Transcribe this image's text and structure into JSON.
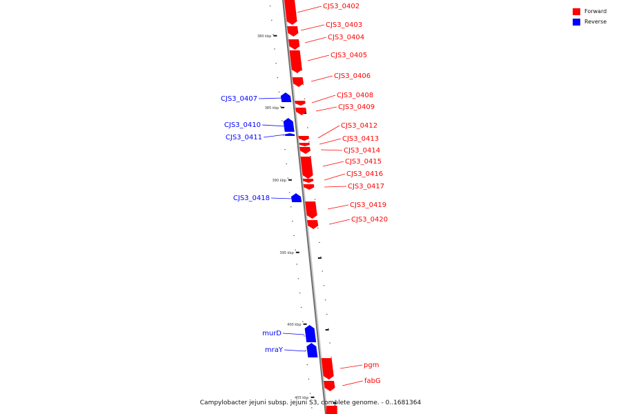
{
  "caption": "Campylobacter jejuni subsp. jejuni S3, complete genome. - 0..1681364",
  "legend": {
    "forward": {
      "label": "Forward",
      "color": "#ff0000"
    },
    "reverse": {
      "label": "Reverse",
      "color": "#0000ff"
    }
  },
  "track": {
    "scale_labels": [
      "380 kbp",
      "385 kbp",
      "390 kbp",
      "395 kbp",
      "400 kbp",
      "405 kbp"
    ]
  },
  "genes": {
    "forward": [
      {
        "name": "CJS3_0402"
      },
      {
        "name": "CJS3_0403"
      },
      {
        "name": "CJS3_0404"
      },
      {
        "name": "CJS3_0405"
      },
      {
        "name": "CJS3_0406"
      },
      {
        "name": "CJS3_0408"
      },
      {
        "name": "CJS3_0409"
      },
      {
        "name": "CJS3_0412"
      },
      {
        "name": "CJS3_0413"
      },
      {
        "name": "CJS3_0414"
      },
      {
        "name": "CJS3_0415"
      },
      {
        "name": "CJS3_0416"
      },
      {
        "name": "CJS3_0417"
      },
      {
        "name": "CJS3_0419"
      },
      {
        "name": "CJS3_0420"
      },
      {
        "name": "pgm"
      },
      {
        "name": "fabG"
      }
    ],
    "reverse": [
      {
        "name": "CJS3_0407"
      },
      {
        "name": "CJS3_0410"
      },
      {
        "name": "CJS3_0411"
      },
      {
        "name": "CJS3_0418"
      },
      {
        "name": "murD"
      },
      {
        "name": "mraY"
      }
    ]
  }
}
